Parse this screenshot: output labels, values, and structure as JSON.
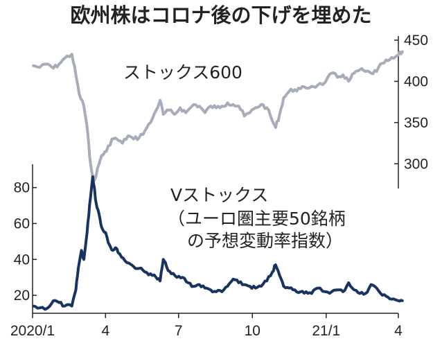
{
  "title": "欧州株はコロナ後の下げを埋めた",
  "chart_data": {
    "type": "line",
    "x_tick_labels": [
      "2020/1",
      "4",
      "7",
      "10",
      "21/1",
      "4"
    ],
    "x_tick_dates": [
      "2020-01-01",
      "2020-04-01",
      "2020-07-01",
      "2020-10-01",
      "2021-01-01",
      "2021-04-01"
    ],
    "x_range": [
      "2020-01-01",
      "2021-04-01"
    ],
    "series": [
      {
        "name": "ストックス600",
        "axis": "right",
        "color": "#a6acba",
        "points": [
          [
            "2020-01-02",
            419
          ],
          [
            "2020-01-10",
            417
          ],
          [
            "2020-01-20",
            421
          ],
          [
            "2020-01-27",
            416
          ],
          [
            "2020-02-03",
            421
          ],
          [
            "2020-02-10",
            428
          ],
          [
            "2020-02-19",
            433
          ],
          [
            "2020-02-24",
            408
          ],
          [
            "2020-02-28",
            385
          ],
          [
            "2020-03-05",
            370
          ],
          [
            "2020-03-09",
            345
          ],
          [
            "2020-03-12",
            310
          ],
          [
            "2020-03-16",
            285
          ],
          [
            "2020-03-18",
            280
          ],
          [
            "2020-03-24",
            300
          ],
          [
            "2020-03-27",
            310
          ],
          [
            "2020-04-02",
            315
          ],
          [
            "2020-04-09",
            330
          ],
          [
            "2020-04-15",
            330
          ],
          [
            "2020-04-22",
            325
          ],
          [
            "2020-04-29",
            334
          ],
          [
            "2020-05-06",
            330
          ],
          [
            "2020-05-13",
            332
          ],
          [
            "2020-05-20",
            340
          ],
          [
            "2020-05-27",
            350
          ],
          [
            "2020-06-03",
            365
          ],
          [
            "2020-06-08",
            377
          ],
          [
            "2020-06-12",
            360
          ],
          [
            "2020-06-19",
            365
          ],
          [
            "2020-06-26",
            360
          ],
          [
            "2020-07-03",
            368
          ],
          [
            "2020-07-10",
            362
          ],
          [
            "2020-07-20",
            372
          ],
          [
            "2020-07-27",
            370
          ],
          [
            "2020-08-03",
            362
          ],
          [
            "2020-08-10",
            370
          ],
          [
            "2020-08-17",
            368
          ],
          [
            "2020-08-24",
            370
          ],
          [
            "2020-08-31",
            374
          ],
          [
            "2020-09-07",
            372
          ],
          [
            "2020-09-14",
            370
          ],
          [
            "2020-09-21",
            358
          ],
          [
            "2020-09-28",
            362
          ],
          [
            "2020-10-05",
            368
          ],
          [
            "2020-10-12",
            372
          ],
          [
            "2020-10-19",
            368
          ],
          [
            "2020-10-26",
            352
          ],
          [
            "2020-10-30",
            344
          ],
          [
            "2020-11-04",
            360
          ],
          [
            "2020-11-09",
            380
          ],
          [
            "2020-11-16",
            388
          ],
          [
            "2020-11-23",
            390
          ],
          [
            "2020-11-30",
            391
          ],
          [
            "2020-12-07",
            392
          ],
          [
            "2020-12-14",
            394
          ],
          [
            "2020-12-21",
            395
          ],
          [
            "2020-12-31",
            399
          ],
          [
            "2021-01-08",
            410
          ],
          [
            "2021-01-15",
            405
          ],
          [
            "2021-01-22",
            408
          ],
          [
            "2021-01-29",
            400
          ],
          [
            "2021-02-05",
            410
          ],
          [
            "2021-02-12",
            414
          ],
          [
            "2021-02-19",
            412
          ],
          [
            "2021-02-26",
            410
          ],
          [
            "2021-03-05",
            412
          ],
          [
            "2021-03-12",
            422
          ],
          [
            "2021-03-19",
            425
          ],
          [
            "2021-03-26",
            428
          ],
          [
            "2021-04-01",
            432
          ],
          [
            "2021-04-06",
            436
          ]
        ]
      },
      {
        "name": "Vストックス",
        "subtitle_line1": "（ユーロ圏主要50銘柄",
        "subtitle_line2": "の予想変動率指数）",
        "axis": "left",
        "color": "#18335f",
        "points": [
          [
            "2020-01-02",
            14
          ],
          [
            "2020-01-10",
            13
          ],
          [
            "2020-01-20",
            13
          ],
          [
            "2020-01-27",
            17
          ],
          [
            "2020-02-03",
            16
          ],
          [
            "2020-02-10",
            14
          ],
          [
            "2020-02-19",
            14
          ],
          [
            "2020-02-24",
            23
          ],
          [
            "2020-02-27",
            35
          ],
          [
            "2020-03-02",
            45
          ],
          [
            "2020-03-05",
            40
          ],
          [
            "2020-03-09",
            55
          ],
          [
            "2020-03-12",
            70
          ],
          [
            "2020-03-16",
            86
          ],
          [
            "2020-03-18",
            80
          ],
          [
            "2020-03-20",
            72
          ],
          [
            "2020-03-24",
            65
          ],
          [
            "2020-03-27",
            58
          ],
          [
            "2020-04-01",
            55
          ],
          [
            "2020-04-06",
            48
          ],
          [
            "2020-04-10",
            45
          ],
          [
            "2020-04-15",
            46
          ],
          [
            "2020-04-20",
            42
          ],
          [
            "2020-04-24",
            40
          ],
          [
            "2020-04-30",
            38
          ],
          [
            "2020-05-06",
            36
          ],
          [
            "2020-05-13",
            35
          ],
          [
            "2020-05-20",
            33
          ],
          [
            "2020-05-27",
            32
          ],
          [
            "2020-06-03",
            30
          ],
          [
            "2020-06-08",
            28
          ],
          [
            "2020-06-12",
            40
          ],
          [
            "2020-06-16",
            36
          ],
          [
            "2020-06-22",
            32
          ],
          [
            "2020-06-29",
            30
          ],
          [
            "2020-07-06",
            30
          ],
          [
            "2020-07-13",
            27
          ],
          [
            "2020-07-20",
            25
          ],
          [
            "2020-07-27",
            26
          ],
          [
            "2020-08-03",
            24
          ],
          [
            "2020-08-10",
            23
          ],
          [
            "2020-08-17",
            22
          ],
          [
            "2020-08-24",
            22
          ],
          [
            "2020-08-31",
            25
          ],
          [
            "2020-09-07",
            29
          ],
          [
            "2020-09-14",
            27
          ],
          [
            "2020-09-21",
            26
          ],
          [
            "2020-09-28",
            25
          ],
          [
            "2020-10-05",
            24
          ],
          [
            "2020-10-12",
            25
          ],
          [
            "2020-10-19",
            28
          ],
          [
            "2020-10-26",
            33
          ],
          [
            "2020-10-30",
            37
          ],
          [
            "2020-11-04",
            31
          ],
          [
            "2020-11-09",
            25
          ],
          [
            "2020-11-16",
            24
          ],
          [
            "2020-11-23",
            23
          ],
          [
            "2020-11-30",
            22
          ],
          [
            "2020-12-07",
            22
          ],
          [
            "2020-12-14",
            21
          ],
          [
            "2020-12-21",
            24
          ],
          [
            "2020-12-31",
            22
          ],
          [
            "2021-01-08",
            22
          ],
          [
            "2021-01-15",
            23
          ],
          [
            "2021-01-22",
            22
          ],
          [
            "2021-01-29",
            27
          ],
          [
            "2021-02-05",
            23
          ],
          [
            "2021-02-12",
            21
          ],
          [
            "2021-02-19",
            21
          ],
          [
            "2021-02-26",
            26
          ],
          [
            "2021-03-05",
            24
          ],
          [
            "2021-03-12",
            20
          ],
          [
            "2021-03-19",
            19
          ],
          [
            "2021-03-26",
            18
          ],
          [
            "2021-04-01",
            17
          ],
          [
            "2021-04-06",
            17
          ]
        ]
      }
    ],
    "y_left": {
      "ticks": [
        20,
        40,
        60,
        80
      ],
      "range": [
        10,
        93
      ]
    },
    "y_right": {
      "ticks": [
        300,
        350,
        400,
        450
      ],
      "range": [
        270,
        455
      ]
    },
    "grid": false
  }
}
